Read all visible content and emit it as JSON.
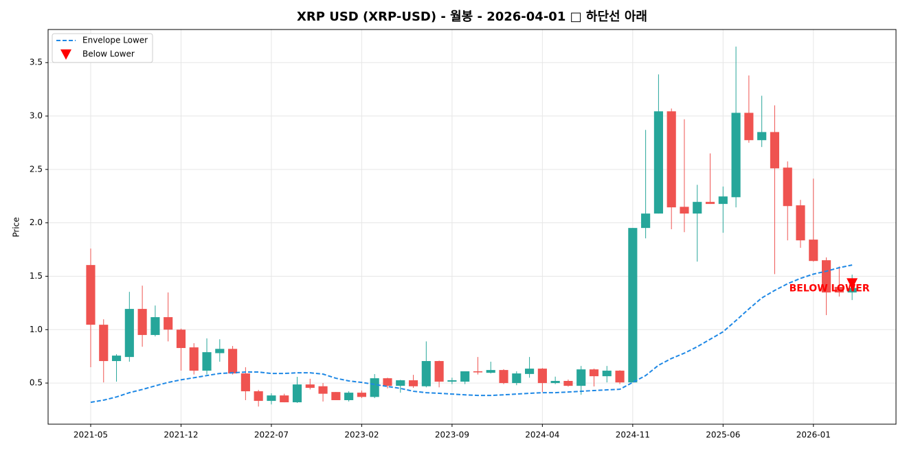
{
  "chart_data": {
    "type": "candlestick",
    "title": "XRP USD (XRP-USD) - 월봉 - 2026-04-01 □ 하단선 아래",
    "y_label": "Price",
    "x": [
      "2021-05",
      "2021-06",
      "2021-07",
      "2021-08",
      "2021-09",
      "2021-10",
      "2021-11",
      "2021-12",
      "2022-01",
      "2022-02",
      "2022-03",
      "2022-04",
      "2022-05",
      "2022-06",
      "2022-07",
      "2022-08",
      "2022-09",
      "2022-10",
      "2022-11",
      "2022-12",
      "2023-01",
      "2023-02",
      "2023-03",
      "2023-04",
      "2023-05",
      "2023-06",
      "2023-07",
      "2023-08",
      "2023-09",
      "2023-10",
      "2023-11",
      "2023-12",
      "2024-01",
      "2024-02",
      "2024-03",
      "2024-04",
      "2024-05",
      "2024-06",
      "2024-07",
      "2024-08",
      "2024-09",
      "2024-10",
      "2024-11",
      "2024-12",
      "2025-01",
      "2025-02",
      "2025-03",
      "2025-04",
      "2025-05",
      "2025-06",
      "2025-07",
      "2025-08",
      "2025-09",
      "2025-10",
      "2025-11",
      "2025-12",
      "2026-01",
      "2026-02",
      "2026-03",
      "2026-04"
    ],
    "open": [
      1.605,
      1.046,
      0.706,
      0.744,
      1.194,
      0.95,
      1.117,
      1.0,
      0.834,
      0.616,
      0.78,
      0.82,
      0.59,
      0.423,
      0.333,
      0.384,
      0.32,
      0.487,
      0.47,
      0.416,
      0.34,
      0.41,
      0.37,
      0.545,
      0.474,
      0.526,
      0.47,
      0.706,
      0.513,
      0.513,
      0.61,
      0.596,
      0.622,
      0.5,
      0.585,
      0.635,
      0.5,
      0.52,
      0.474,
      0.628,
      0.564,
      0.616,
      0.506,
      1.952,
      2.087,
      3.044,
      2.15,
      2.087,
      2.196,
      2.177,
      2.24,
      3.03,
      2.774,
      2.85,
      2.517,
      2.164,
      1.843,
      1.65,
      1.4,
      1.348
    ],
    "high": [
      1.759,
      1.097,
      0.77,
      1.354,
      1.412,
      1.226,
      1.348,
      1.01,
      0.873,
      0.918,
      0.91,
      0.847,
      0.648,
      0.436,
      0.404,
      0.4,
      0.558,
      0.54,
      0.5,
      0.416,
      0.423,
      0.43,
      0.584,
      0.55,
      0.53,
      0.577,
      0.89,
      0.71,
      0.55,
      0.61,
      0.744,
      0.7,
      0.63,
      0.61,
      0.744,
      0.64,
      0.56,
      0.533,
      0.66,
      0.635,
      0.66,
      0.62,
      1.952,
      2.87,
      3.39,
      3.07,
      2.97,
      2.356,
      2.65,
      2.34,
      3.65,
      3.38,
      3.19,
      3.1,
      2.575,
      2.215,
      2.414,
      1.676,
      1.592,
      1.515
    ],
    "low": [
      0.648,
      0.506,
      0.513,
      0.7,
      0.84,
      0.937,
      0.89,
      0.616,
      0.58,
      0.58,
      0.7,
      0.58,
      0.34,
      0.28,
      0.3,
      0.32,
      0.314,
      0.44,
      0.327,
      0.34,
      0.327,
      0.36,
      0.359,
      0.45,
      0.41,
      0.455,
      0.46,
      0.46,
      0.49,
      0.49,
      0.58,
      0.59,
      0.49,
      0.48,
      0.55,
      0.416,
      0.49,
      0.467,
      0.39,
      0.468,
      0.506,
      0.49,
      0.506,
      1.855,
      2.087,
      1.94,
      1.913,
      1.637,
      2.177,
      1.907,
      2.145,
      2.75,
      2.71,
      1.52,
      1.836,
      1.766,
      1.637,
      1.136,
      1.31,
      1.277
    ],
    "close": [
      1.046,
      0.706,
      0.757,
      1.194,
      0.95,
      1.117,
      1.0,
      0.828,
      0.616,
      0.789,
      0.82,
      0.59,
      0.423,
      0.333,
      0.384,
      0.32,
      0.487,
      0.455,
      0.4,
      0.34,
      0.41,
      0.37,
      0.545,
      0.474,
      0.526,
      0.47,
      0.706,
      0.513,
      0.526,
      0.61,
      0.6,
      0.622,
      0.5,
      0.59,
      0.635,
      0.5,
      0.52,
      0.474,
      0.628,
      0.564,
      0.616,
      0.506,
      1.952,
      2.087,
      3.044,
      2.145,
      2.087,
      2.196,
      2.177,
      2.247,
      3.03,
      2.774,
      2.85,
      2.51,
      2.157,
      1.836,
      1.643,
      1.348,
      1.348,
      1.39
    ],
    "up_color": "#26a69a",
    "down_color": "#ef5350",
    "lines": [
      {
        "name": "Envelope Lower",
        "color": "#1e88e5",
        "values": [
          0.32,
          0.34,
          0.37,
          0.41,
          0.44,
          0.474,
          0.506,
          0.53,
          0.55,
          0.57,
          0.59,
          0.596,
          0.603,
          0.603,
          0.59,
          0.59,
          0.596,
          0.596,
          0.584,
          0.545,
          0.52,
          0.506,
          0.487,
          0.468,
          0.45,
          0.423,
          0.41,
          0.404,
          0.397,
          0.39,
          0.384,
          0.384,
          0.39,
          0.397,
          0.404,
          0.41,
          0.41,
          0.416,
          0.423,
          0.43,
          0.436,
          0.442,
          0.506,
          0.57,
          0.667,
          0.73,
          0.78,
          0.84,
          0.91,
          0.98,
          1.085,
          1.194,
          1.297,
          1.367,
          1.43,
          1.48,
          1.52,
          1.547,
          1.58,
          1.605
        ]
      }
    ],
    "markers": [
      {
        "name": "Below Lower",
        "color": "#ff0000",
        "x": [
          "2026-04"
        ],
        "values": [
          1.43
        ],
        "label": "BELOW LOWER"
      }
    ],
    "ylim": [
      0.115,
      3.81
    ],
    "yticks": [
      0.5,
      {
        "value": 1,
        "label": "1.0"
      },
      1.5,
      {
        "value": 2,
        "label": "2.0"
      },
      2.5,
      {
        "value": 3,
        "label": "3.0"
      },
      3.5
    ],
    "xticks": [
      "2021-05",
      "2021-12",
      "2022-07",
      "2023-02",
      "2023-09",
      "2024-04",
      "2024-11",
      "2025-06",
      "2026-01"
    ],
    "grid": true,
    "legend_position": "upper left"
  }
}
